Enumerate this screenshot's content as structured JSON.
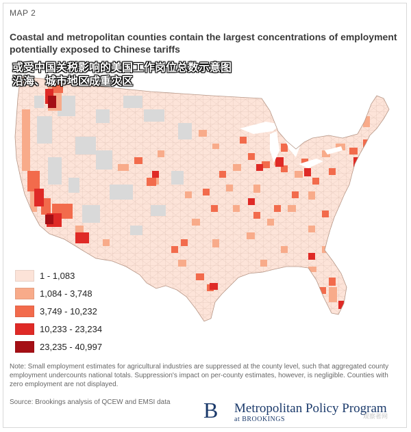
{
  "header": {
    "map_label": "MAP 2",
    "title": "Coastal and metropolitan counties contain the largest concentrations of employment potentially exposed to Chinese tariffs"
  },
  "overlay": {
    "line1": "或受中国关税影响的美国工作岗位总数示意图",
    "line2": "沿海、城市地区成重灾区"
  },
  "legend": {
    "items": [
      {
        "label": "1 - 1,083",
        "color": "#fce3d8"
      },
      {
        "label": "1,084 - 3,748",
        "color": "#f8ab8a"
      },
      {
        "label": "3,749 - 10,232",
        "color": "#f26b4c"
      },
      {
        "label": "10,233 - 23,234",
        "color": "#df2a26"
      },
      {
        "label": "23,235 - 40,997",
        "color": "#a50f15"
      }
    ],
    "nodata_color": "#d9d9d9"
  },
  "footer": {
    "note": "Note: Small employment estimates for agricultural industries are suppressed at the county level, such that aggregated county employment undercounts national totals. Suppression's impact on per-county estimates, however, is negligible. Counties with zero employment are not displayed.",
    "source": "Source: Brookings analysis of QCEW and EMSI data"
  },
  "brand": {
    "logo_letter": "B",
    "name": "Metropolitan Policy Program",
    "sub": "at BROOKINGS"
  },
  "watermark": "观察者网"
}
